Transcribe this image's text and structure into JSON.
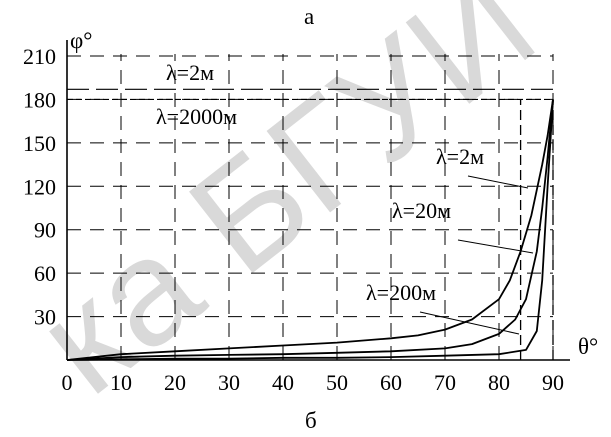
{
  "chart_data": {
    "type": "line",
    "title_top": "а",
    "title_bottom": "б",
    "xlabel": "θ°",
    "ylabel": "φ°",
    "xlim": [
      0,
      90
    ],
    "ylim": [
      0,
      210
    ],
    "x_ticks": [
      "0",
      "10",
      "20",
      "30",
      "40",
      "50",
      "60",
      "70",
      "80",
      "90"
    ],
    "y_ticks": [
      "30",
      "60",
      "90",
      "120",
      "150",
      "180",
      "210"
    ],
    "grid": "dashed",
    "series": [
      {
        "name": "λ=2м",
        "x": [
          0,
          10,
          20,
          30,
          40,
          50,
          60,
          65,
          70,
          75,
          80,
          82,
          84,
          86,
          88,
          89,
          90
        ],
        "y": [
          0,
          4,
          6,
          8,
          10,
          12,
          15,
          17,
          21,
          28,
          42,
          55,
          75,
          100,
          135,
          155,
          180
        ]
      },
      {
        "name": "λ=20м",
        "x": [
          0,
          10,
          20,
          30,
          40,
          50,
          60,
          70,
          75,
          80,
          83,
          85,
          87,
          88,
          89,
          90
        ],
        "y": [
          0,
          2,
          3,
          3.5,
          4,
          5,
          6,
          8,
          11,
          18,
          28,
          42,
          75,
          105,
          140,
          180
        ]
      },
      {
        "name": "λ=200м",
        "x": [
          0,
          10,
          20,
          30,
          40,
          50,
          60,
          70,
          80,
          85,
          87,
          88,
          89,
          90
        ],
        "y": [
          0,
          0.5,
          1,
          1,
          1.5,
          1.5,
          2,
          3,
          4,
          7,
          20,
          55,
          120,
          180
        ]
      }
    ],
    "reference_lines": [
      {
        "label": "λ=2м",
        "y": 187
      },
      {
        "label": "λ=2000м",
        "y": 180
      }
    ],
    "vertical_markers": [
      84,
      90
    ],
    "watermark": "ка БГУИ"
  }
}
